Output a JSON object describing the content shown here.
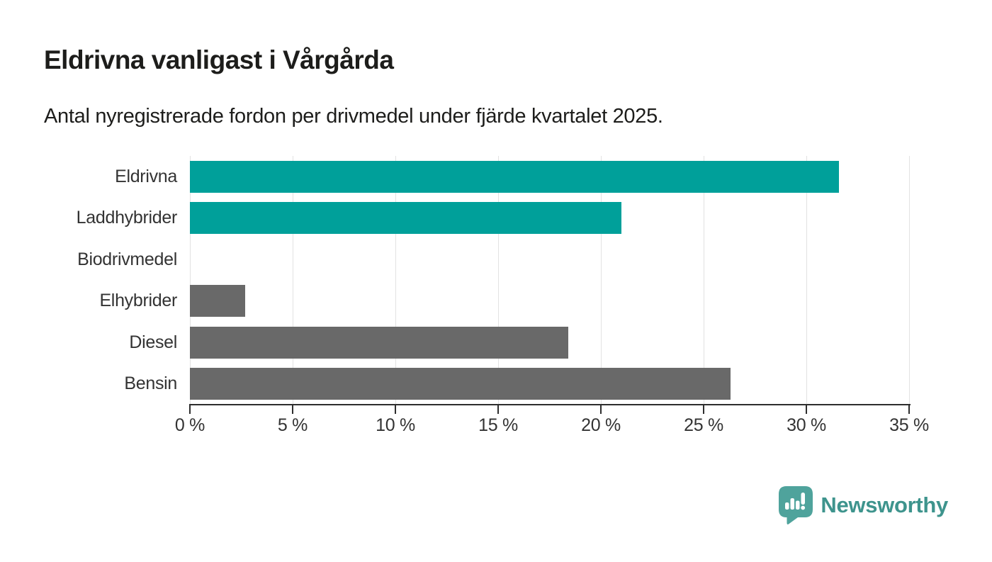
{
  "header": {
    "title": "Eldrivna vanligast i Vårgårda",
    "subtitle": "Antal nyregistrerade fordon per drivmedel under fjärde kvartalet 2025."
  },
  "chart_data": {
    "type": "bar",
    "orientation": "horizontal",
    "title": "Eldrivna vanligast i Vårgårda",
    "subtitle": "Antal nyregistrerade fordon per drivmedel under fjärde kvartalet 2025.",
    "categories": [
      "Eldrivna",
      "Laddhybrider",
      "Biodrivmedel",
      "Elhybrider",
      "Diesel",
      "Bensin"
    ],
    "values": [
      31.6,
      21.0,
      0,
      2.7,
      18.4,
      26.3
    ],
    "unit": "%",
    "bar_colors": [
      "#00a09a",
      "#00a09a",
      "#696969",
      "#696969",
      "#696969",
      "#696969"
    ],
    "highlight_color": "#00a09a",
    "default_color": "#696969",
    "xlabel": "",
    "ylabel": "",
    "xlim": [
      0,
      35
    ],
    "x_ticks": [
      0,
      5,
      10,
      15,
      20,
      25,
      30,
      35
    ],
    "x_tick_labels": [
      "0 %",
      "5 %",
      "10 %",
      "15 %",
      "20 %",
      "25 %",
      "30 %",
      "35 %"
    ],
    "grid": "vertical",
    "legend": "none"
  },
  "branding": {
    "name": "Newsworthy",
    "logo_icon": "newsworthy-logo-icon",
    "icon_color": "#4fa39c",
    "text_color": "#3e948d"
  }
}
